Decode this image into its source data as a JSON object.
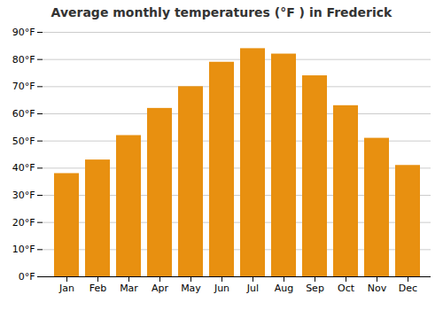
{
  "chart_data": {
    "type": "bar",
    "title": "Average monthly temperatures (°F ) in Frederick",
    "categories": [
      "Jan",
      "Feb",
      "Mar",
      "Apr",
      "May",
      "Jun",
      "Jul",
      "Aug",
      "Sep",
      "Oct",
      "Nov",
      "Dec"
    ],
    "values": [
      38,
      43,
      52,
      62,
      70,
      79,
      84,
      82,
      74,
      63,
      51,
      41
    ],
    "color": "#E89010",
    "ylim": [
      0,
      90
    ],
    "yticks": [
      {
        "value": 0,
        "label": "0°F"
      },
      {
        "value": 10,
        "label": "10°F"
      },
      {
        "value": 20,
        "label": "20°F"
      },
      {
        "value": 30,
        "label": "30°F"
      },
      {
        "value": 40,
        "label": "40°F"
      },
      {
        "value": 50,
        "label": "50°F"
      },
      {
        "value": 60,
        "label": "60°F"
      },
      {
        "value": 70,
        "label": "70°F"
      },
      {
        "value": 80,
        "label": "80°F"
      },
      {
        "value": 90,
        "label": "90°F"
      }
    ],
    "grid": true
  }
}
